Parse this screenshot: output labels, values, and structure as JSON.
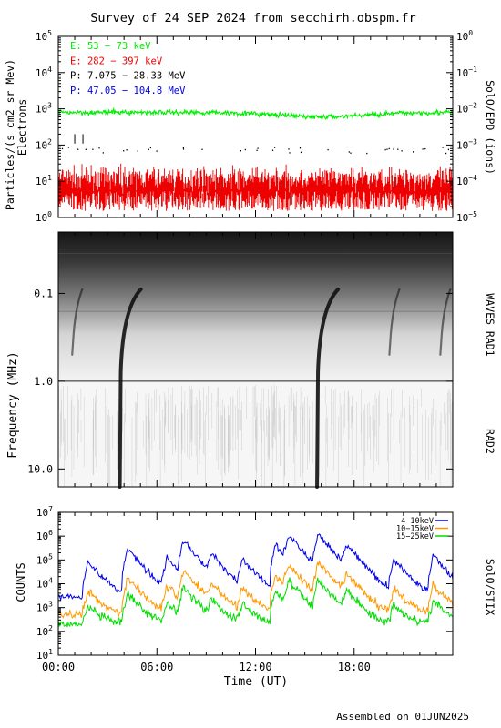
{
  "title": "Survey of 24 SEP 2024 from secchirh.obspm.fr",
  "footer": "Assembled on 01JUN2025",
  "colors": {
    "green": "#00ee00",
    "red": "#ee0000",
    "black": "#000000",
    "blue": "#0000ee",
    "orange": "#ff9900",
    "stix_green": "#00dd00"
  },
  "chart_data": [
    {
      "type": "line",
      "panel": "particles",
      "ylabel": "Particles/(s cm2 sr Mev)",
      "ylabel2": "Electrons",
      "right_label": "SolO/EPD (ions)",
      "yscale": "log",
      "ylim": [
        1,
        100000
      ],
      "y_ticks": [
        {
          "base": "10",
          "exp": "0"
        },
        {
          "base": "10",
          "exp": "1"
        },
        {
          "base": "10",
          "exp": "2"
        },
        {
          "base": "10",
          "exp": "3"
        },
        {
          "base": "10",
          "exp": "4"
        },
        {
          "base": "10",
          "exp": "5"
        }
      ],
      "right_ylim": [
        1e-05,
        1
      ],
      "right_ticks": [
        {
          "base": "10",
          "exp": "0"
        },
        {
          "base": "10",
          "exp": "−1"
        },
        {
          "base": "10",
          "exp": "−2"
        },
        {
          "base": "10",
          "exp": "−3"
        },
        {
          "base": "10",
          "exp": "−4"
        },
        {
          "base": "10",
          "exp": "−5"
        }
      ],
      "series": [
        {
          "name": "E: 53 − 73 keV",
          "color": "#00ee00",
          "typical_value": 800
        },
        {
          "name": "E: 282 − 397 keV",
          "color": "#ee0000",
          "typical_value": 12
        },
        {
          "name": "P: 7.075 − 28.33 MeV",
          "color": "#000000",
          "typical_value": 60
        },
        {
          "name": "P: 47.05 − 104.8 MeV",
          "color": "#0000ee",
          "typical_value": null
        }
      ]
    },
    {
      "type": "heatmap",
      "panel": "radio",
      "ylabel": "Frequency (MHz)",
      "yscale": "log",
      "ylim": [
        0.02,
        16
      ],
      "y_ticks": [
        "0.1",
        "1.0",
        "10.0"
      ],
      "right_labels": [
        "WAVES RAD1",
        "RAD2"
      ],
      "bursts_hours": [
        0.9,
        3.8,
        15.8,
        20.2,
        23.3
      ]
    },
    {
      "type": "line",
      "panel": "stix",
      "ylabel": "COUNTS",
      "right_label": "SolO/STIX",
      "yscale": "log",
      "ylim": [
        10,
        10000000
      ],
      "y_ticks": [
        {
          "base": "10",
          "exp": "1"
        },
        {
          "base": "10",
          "exp": "2"
        },
        {
          "base": "10",
          "exp": "3"
        },
        {
          "base": "10",
          "exp": "4"
        },
        {
          "base": "10",
          "exp": "5"
        },
        {
          "base": "10",
          "exp": "6"
        },
        {
          "base": "10",
          "exp": "7"
        }
      ],
      "series": [
        {
          "name": "4−10keV",
          "color": "#0000ee",
          "baseline": 3000
        },
        {
          "name": "10−15keV",
          "color": "#ff9900",
          "baseline": 500
        },
        {
          "name": "15−25keV",
          "color": "#00dd00",
          "baseline": 200
        }
      ],
      "flare_hours": [
        1.8,
        4.2,
        6.6,
        7.6,
        9.3,
        11.2,
        13.2,
        14.0,
        15.8,
        17.5,
        20.4,
        22.8
      ],
      "flare_peaks": [
        80000,
        300000,
        120000,
        600000,
        150000,
        100000,
        400000,
        1000000,
        1200000,
        400000,
        100000,
        150000
      ]
    }
  ],
  "xaxis": {
    "label": "Time (UT)",
    "xlim": [
      0,
      24
    ],
    "ticks": [
      {
        "h": 0,
        "label": "00:00"
      },
      {
        "h": 6,
        "label": "06:00"
      },
      {
        "h": 12,
        "label": "12:00"
      },
      {
        "h": 18,
        "label": "18:00"
      }
    ]
  }
}
